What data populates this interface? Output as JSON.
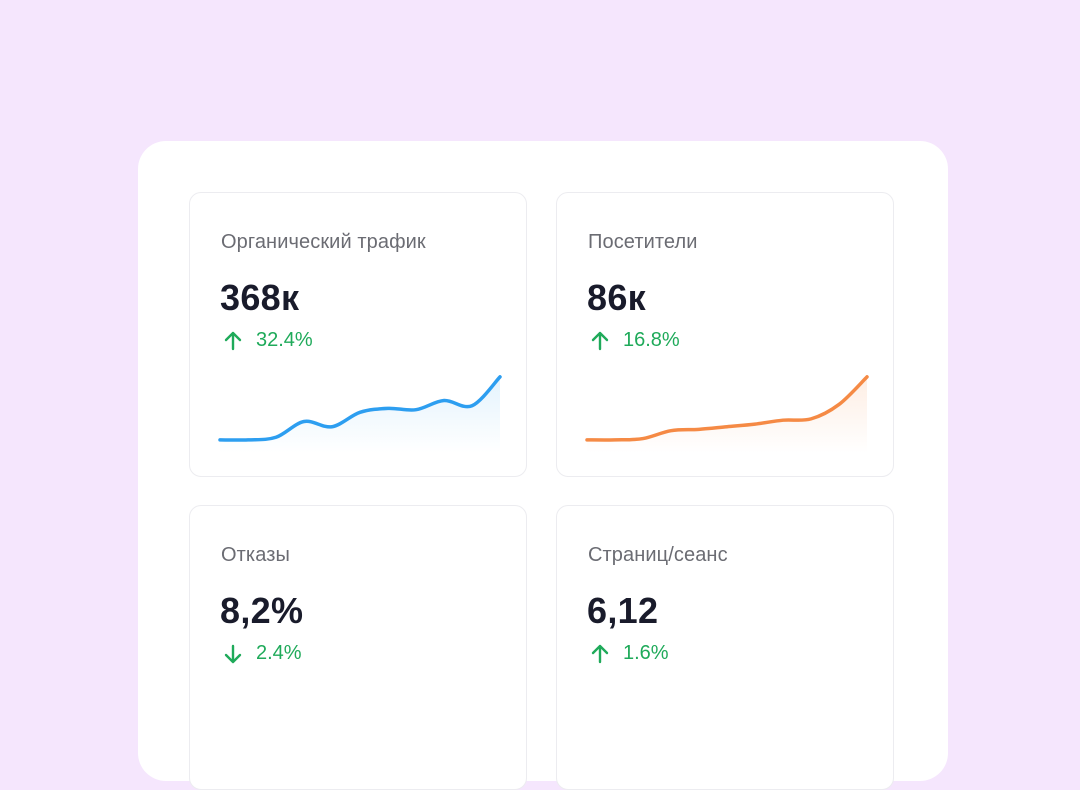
{
  "colors": {
    "background": "#f5e6fd",
    "panel": "#ffffff",
    "positive": "#1faa5a",
    "blue_line": "#2d9ef0",
    "orange_line": "#f58a45"
  },
  "metrics": [
    {
      "title": "Органический трафик",
      "value": "368к",
      "change": "32.4%",
      "direction": "up",
      "arrow_icon": "arrow-up-icon",
      "sparkline": {
        "color": "#2d9ef0",
        "fill": "#e4f3fd",
        "values": [
          10,
          10,
          12,
          24,
          20,
          31,
          34,
          33,
          40,
          36,
          58
        ]
      }
    },
    {
      "title": "Посетители",
      "value": "86к",
      "change": "16.8%",
      "direction": "up",
      "arrow_icon": "arrow-up-icon",
      "sparkline": {
        "color": "#f58a45",
        "fill": "#fdeee4",
        "values": [
          10,
          10,
          11,
          17,
          18,
          20,
          22,
          25,
          26,
          37,
          58
        ]
      }
    },
    {
      "title": "Отказы",
      "value": "8,2%",
      "change": "2.4%",
      "direction": "down",
      "arrow_icon": "arrow-down-icon"
    },
    {
      "title": "Страниц/сеанс",
      "value": "6,12",
      "change": "1.6%",
      "direction": "up",
      "arrow_icon": "arrow-up-icon"
    }
  ]
}
